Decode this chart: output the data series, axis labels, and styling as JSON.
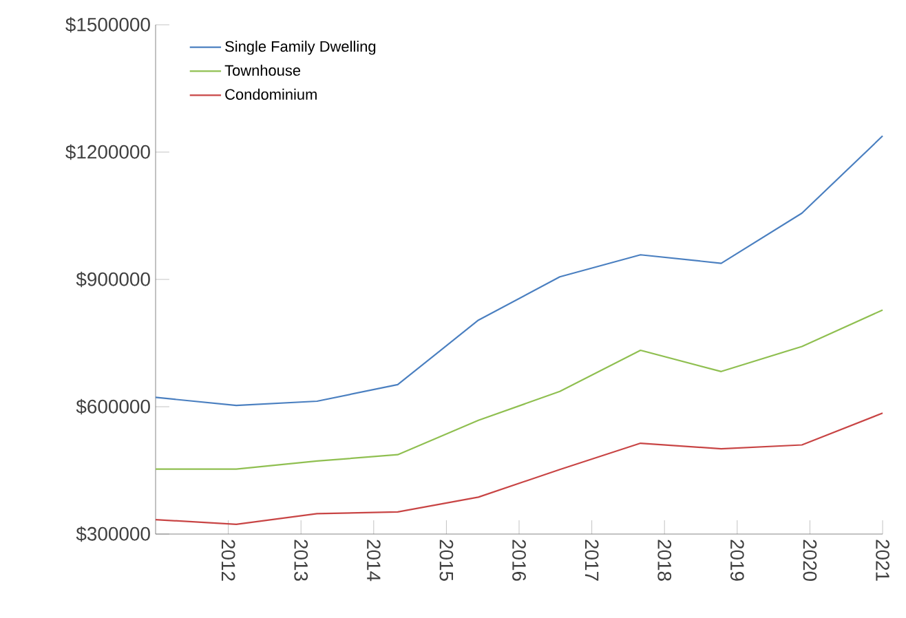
{
  "chart_data": {
    "type": "line",
    "x": [
      2011,
      2012.11,
      2013.22,
      2014.33,
      2015.44,
      2016.56,
      2017.67,
      2018.78,
      2019.89,
      2021
    ],
    "series": [
      {
        "name": "Single Family Dwelling",
        "color": "#4a7fc0",
        "values": [
          622000,
          603000,
          613000,
          652000,
          804000,
          906000,
          958000,
          938000,
          1056000,
          1238000
        ]
      },
      {
        "name": "Townhouse",
        "color": "#8fbf50",
        "values": [
          453000,
          453000,
          472000,
          487000,
          568000,
          636000,
          733000,
          683000,
          742000,
          828000
        ]
      },
      {
        "name": "Condominium",
        "color": "#c84444",
        "values": [
          334000,
          323000,
          348000,
          352000,
          387000,
          452000,
          514000,
          501000,
          510000,
          585000
        ]
      }
    ],
    "xlim": [
      2011,
      2021
    ],
    "xticks": [
      2012,
      2013,
      2014,
      2015,
      2016,
      2017,
      2018,
      2019,
      2020,
      2021
    ],
    "ylim": [
      300000,
      1500000
    ],
    "yticks": [
      {
        "value": 300000,
        "label": "$300000"
      },
      {
        "value": 600000,
        "label": "$600000"
      },
      {
        "value": 900000,
        "label": "$900000"
      },
      {
        "value": 1200000,
        "label": "$1200000"
      },
      {
        "value": 1500000,
        "label": "$1500000"
      }
    ],
    "legend": "top left",
    "grid": false
  }
}
